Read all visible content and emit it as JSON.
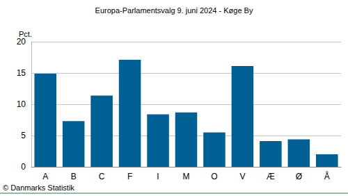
{
  "chart_data": {
    "type": "bar",
    "title": "Europa-Parlamentsvalg 9. juni 2024 - Køge By",
    "ylabel": "Pct.",
    "source": "© Danmarks Statistik",
    "categories": [
      "A",
      "B",
      "C",
      "F",
      "I",
      "M",
      "O",
      "V",
      "Æ",
      "Ø",
      "Å"
    ],
    "values": [
      14.9,
      7.3,
      11.4,
      17.1,
      8.4,
      8.7,
      5.5,
      16.1,
      4.1,
      4.4,
      2.0
    ],
    "color": "#005f93",
    "ylim": [
      0,
      20
    ],
    "yticks": [
      0,
      5,
      10,
      15,
      20
    ],
    "grid": true
  }
}
